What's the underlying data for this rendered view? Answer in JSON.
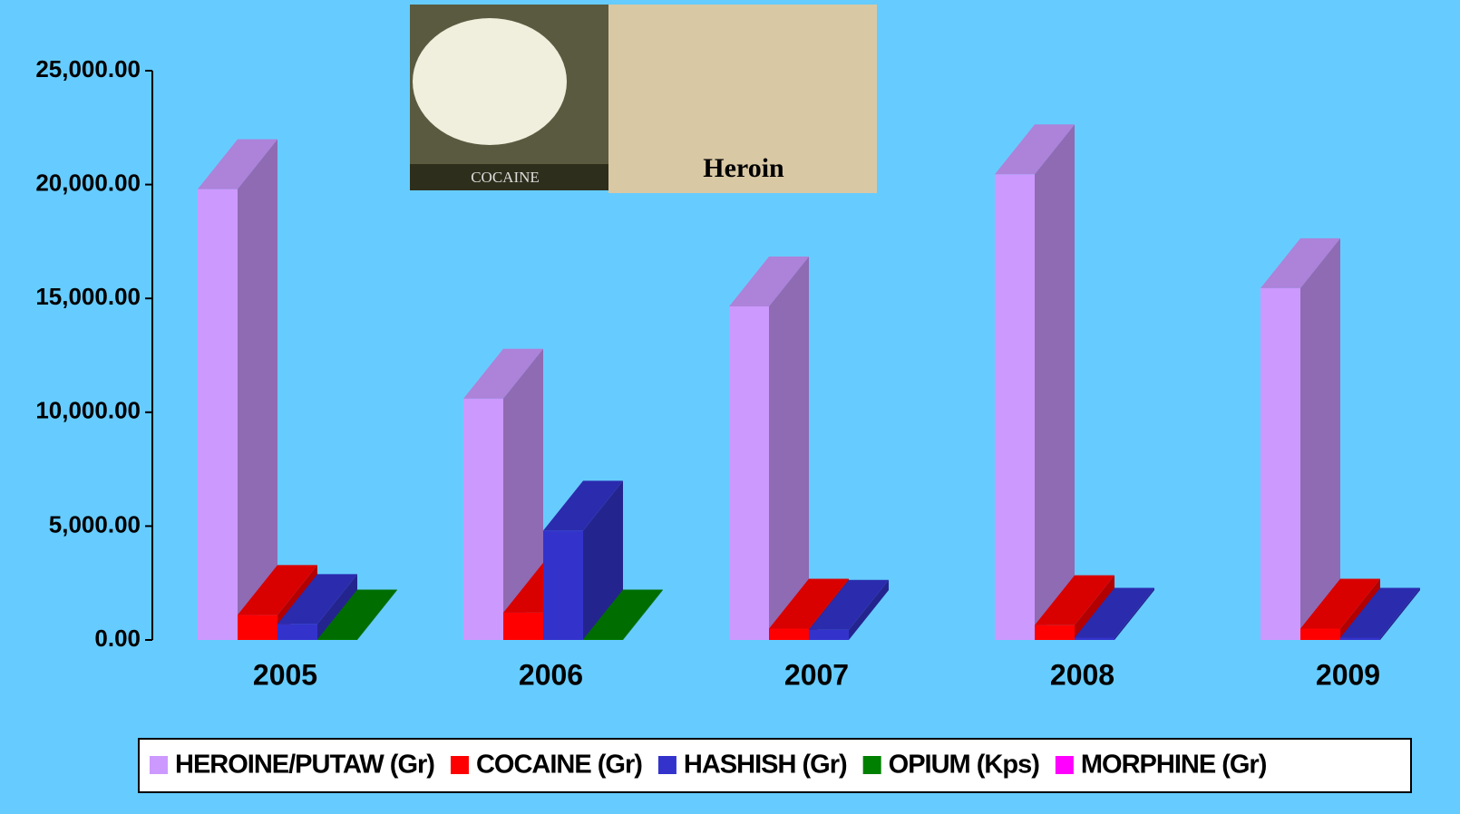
{
  "chart_data": {
    "type": "bar3d",
    "categories": [
      "2005",
      "2006",
      "2007",
      "2008",
      "2009"
    ],
    "series": [
      {
        "name": "HEROINE/PUTAW (Gr)",
        "color": "#cc99ff",
        "values": [
          19800,
          10600,
          14650,
          20450,
          15450
        ]
      },
      {
        "name": "COCAINE (Gr)",
        "color": "#ff0000",
        "values": [
          1100,
          1200,
          500,
          650,
          500
        ]
      },
      {
        "name": "HASHISH (Gr)",
        "color": "#3333cc",
        "values": [
          700,
          4800,
          450,
          100,
          100
        ]
      },
      {
        "name": "OPIUM (Kps)",
        "color": "#008000",
        "values": [
          20,
          20,
          0,
          0,
          0
        ]
      },
      {
        "name": "MORPHINE (Gr)",
        "color": "#ff00ff",
        "values": [
          0,
          0,
          0,
          0,
          0
        ]
      }
    ],
    "ylim": [
      0,
      25000
    ],
    "yticks": [
      {
        "value": 0,
        "label": "0.00"
      },
      {
        "value": 5000,
        "label": "5,000.00"
      },
      {
        "value": 10000,
        "label": "10,000.00"
      },
      {
        "value": 15000,
        "label": "15,000.00"
      },
      {
        "value": 20000,
        "label": "20,000.00"
      },
      {
        "value": 25000,
        "label": "25,000.00"
      }
    ],
    "legend": "bottom",
    "images": [
      {
        "label": "COCAINE"
      },
      {
        "label": "Heroin"
      }
    ]
  }
}
